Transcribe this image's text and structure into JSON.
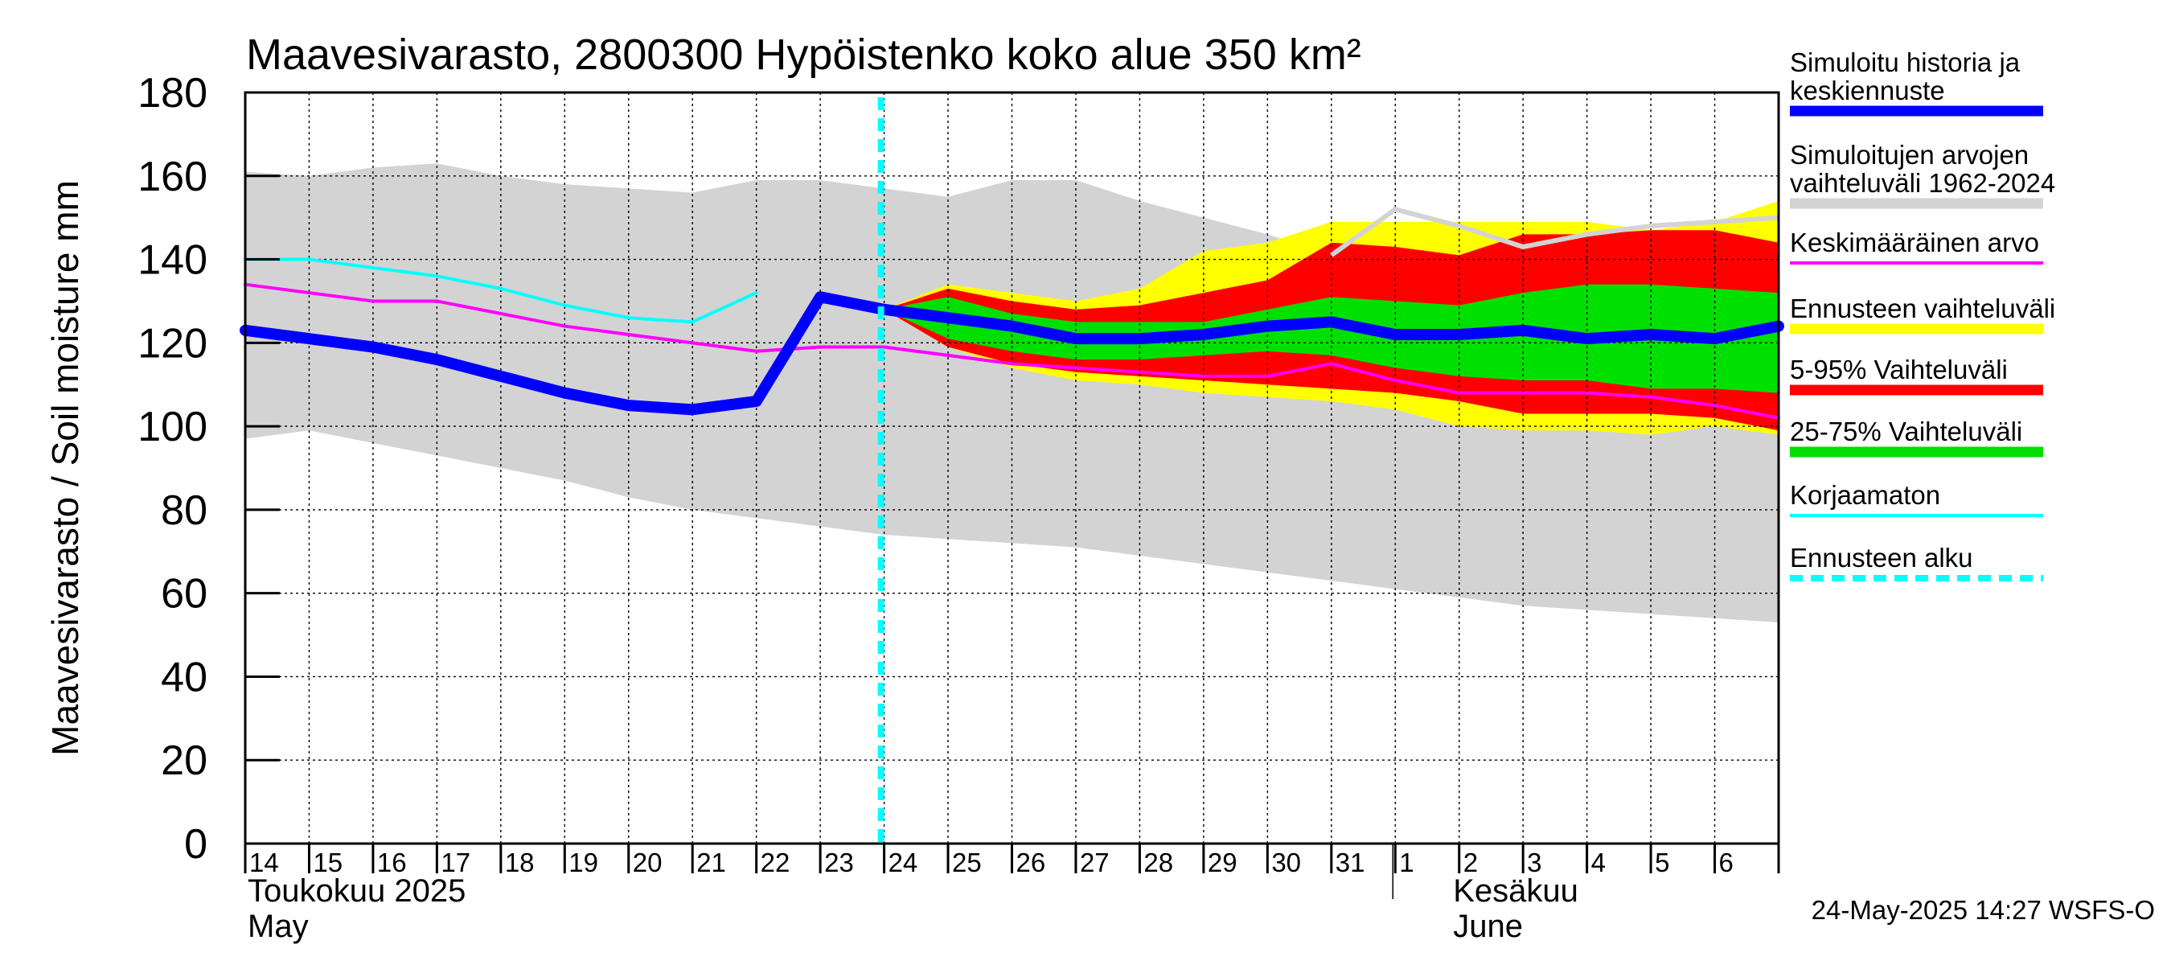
{
  "chart_data": {
    "type": "line",
    "title": "Maavesivarasto, 2800300 Hypöistenko koko alue 350 km²",
    "ylabel": "Maavesivarasto / Soil moisture   mm",
    "ylim": [
      0,
      180
    ],
    "yticks": [
      0,
      20,
      40,
      60,
      80,
      100,
      120,
      140,
      160,
      180
    ],
    "x_start_day": 14,
    "x_end_day": 38,
    "day_labels": [
      "14",
      "15",
      "16",
      "17",
      "18",
      "19",
      "20",
      "21",
      "22",
      "23",
      "24",
      "25",
      "26",
      "27",
      "28",
      "29",
      "30",
      "31",
      "1",
      "2",
      "3",
      "4",
      "5",
      "6"
    ],
    "month_labels": [
      {
        "line1": "Toukokuu  2025",
        "line2": "May",
        "day": 14
      },
      {
        "line1": "Kesäkuu",
        "line2": "June",
        "day": 32
      }
    ],
    "forecast_start_day": 23.95,
    "timestamp": "24-May-2025 14:27 WSFS-O",
    "colors": {
      "history_range": "#d3d3d3",
      "forecast_range": "#ffff00",
      "p5_95": "#ff0000",
      "p25_75": "#00e000",
      "simulated": "#0000ff",
      "mean": "#ff00ff",
      "uncorrected": "#00ffff",
      "forecast_start": "#00ffff"
    },
    "legend": [
      {
        "label": "Simuloitu historia ja keskiennuste",
        "color": "#0000ff",
        "style": "thick"
      },
      {
        "label": "Simuloitujen arvojen vaihteluväli 1962-2024",
        "color": "#d3d3d3",
        "style": "thick"
      },
      {
        "label": "Keskimääräinen arvo",
        "color": "#ff00ff",
        "style": "thin"
      },
      {
        "label": "Ennusteen vaihteluväli",
        "color": "#ffff00",
        "style": "thick"
      },
      {
        "label": "5-95% Vaihteluväli",
        "color": "#ff0000",
        "style": "thick"
      },
      {
        "label": "25-75% Vaihteluväli",
        "color": "#00e000",
        "style": "thick"
      },
      {
        "label": "Korjaamaton",
        "color": "#00ffff",
        "style": "thin"
      },
      {
        "label": "Ennusteen alku",
        "color": "#00ffff",
        "style": "dashed"
      }
    ],
    "history_range": {
      "x": [
        14,
        15,
        16,
        17,
        18,
        19,
        20,
        21,
        22,
        23,
        24,
        25,
        26,
        27,
        28,
        29,
        30,
        31,
        32,
        33,
        34,
        35,
        36,
        37,
        38
      ],
      "upper": [
        161,
        160,
        162,
        163,
        160,
        158,
        157,
        156,
        159,
        159,
        157,
        155,
        159,
        159,
        154,
        150,
        146,
        141,
        138,
        136,
        134,
        133,
        132,
        131,
        130
      ],
      "lower": [
        97,
        99,
        96,
        93,
        90,
        87,
        83,
        80,
        78,
        76,
        74,
        73,
        72,
        71,
        69,
        67,
        65,
        63,
        61,
        59,
        57,
        56,
        55,
        54,
        53
      ]
    },
    "forecast_range": {
      "x": [
        24,
        25,
        26,
        27,
        28,
        29,
        30,
        31,
        32,
        33,
        34,
        35,
        36,
        37,
        38
      ],
      "upper": [
        128,
        134,
        132,
        130,
        133,
        142,
        144,
        149,
        149,
        149,
        149,
        149,
        147,
        149,
        154
      ],
      "lower": [
        128,
        119,
        114,
        111,
        110,
        108,
        107,
        106,
        104,
        100,
        99,
        99,
        98,
        100,
        98
      ]
    },
    "p5_95": {
      "x": [
        24,
        25,
        26,
        27,
        28,
        29,
        30,
        31,
        32,
        33,
        34,
        35,
        36,
        37,
        38
      ],
      "upper": [
        128,
        133,
        130,
        128,
        129,
        132,
        135,
        144,
        143,
        141,
        146,
        146,
        147,
        147,
        144
      ],
      "lower": [
        128,
        119,
        115,
        113,
        112,
        111,
        110,
        109,
        108,
        106,
        103,
        103,
        103,
        102,
        99
      ]
    },
    "p25_75": {
      "x": [
        24,
        25,
        26,
        27,
        28,
        29,
        30,
        31,
        32,
        33,
        34,
        35,
        36,
        37,
        38
      ],
      "upper": [
        128,
        131,
        127,
        125,
        125,
        125,
        128,
        131,
        130,
        129,
        132,
        134,
        134,
        133,
        132
      ],
      "lower": [
        128,
        121,
        118,
        116,
        116,
        117,
        118,
        117,
        114,
        112,
        111,
        111,
        109,
        109,
        108
      ]
    },
    "series": [
      {
        "name": "Korjaamaton",
        "color": "#00ffff",
        "width": 4,
        "x": [
          14,
          15,
          16,
          17,
          18,
          19,
          20,
          21,
          22
        ],
        "y": [
          140,
          140,
          138,
          136,
          133,
          129,
          126,
          125,
          132
        ]
      },
      {
        "name": "Keskimääräinen arvo",
        "color": "#ff00ff",
        "width": 4,
        "x": [
          14,
          15,
          16,
          17,
          18,
          19,
          20,
          21,
          22,
          23,
          24,
          25,
          26,
          27,
          28,
          29,
          30,
          31,
          32,
          33,
          34,
          35,
          36,
          37,
          38
        ],
        "y": [
          134,
          132,
          130,
          130,
          127,
          124,
          122,
          120,
          118,
          119,
          119,
          117,
          115,
          114,
          113,
          112,
          112,
          115,
          111,
          108,
          108,
          108,
          107,
          105,
          102
        ]
      },
      {
        "name": "Simuloitu historia ja keskiennuste",
        "color": "#0000ff",
        "width": 14,
        "x": [
          14,
          15,
          16,
          17,
          18,
          19,
          20,
          21,
          22,
          23,
          24,
          25,
          26,
          27,
          28,
          29,
          30,
          31,
          32,
          33,
          34,
          35,
          36,
          37,
          38
        ],
        "y": [
          123,
          121,
          119,
          116,
          112,
          108,
          105,
          104,
          106,
          131,
          128,
          126,
          124,
          121,
          121,
          122,
          124,
          125,
          122,
          122,
          123,
          121,
          122,
          121,
          124
        ]
      }
    ],
    "upper_gray_line": {
      "color": "#d3d3d3",
      "x": [
        31,
        32,
        33,
        34,
        35,
        36,
        37,
        38
      ],
      "y": [
        141,
        152,
        148,
        143,
        146,
        148,
        149,
        150
      ]
    }
  }
}
